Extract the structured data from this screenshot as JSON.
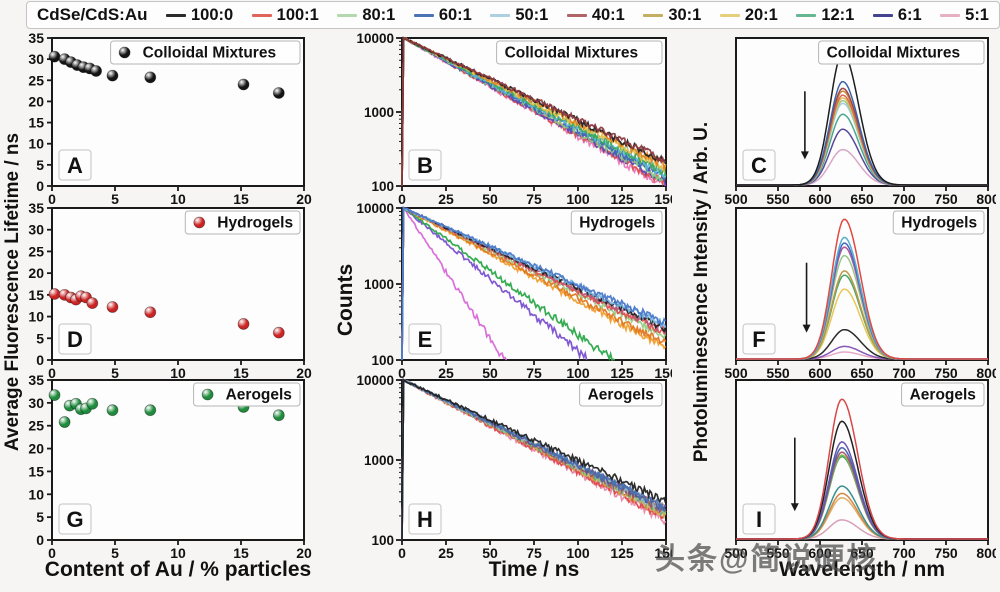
{
  "page": {
    "watermark": "头条@简说硬核"
  },
  "legend": {
    "title": "CdSe/CdS:Au",
    "items": [
      {
        "label": "100:0",
        "color": "#2a2a2a"
      },
      {
        "label": "100:1",
        "color": "#e0645a"
      },
      {
        "label": "80:1",
        "color": "#b2d9ae"
      },
      {
        "label": "60:1",
        "color": "#4a74b4"
      },
      {
        "label": "50:1",
        "color": "#aed0de"
      },
      {
        "label": "40:1",
        "color": "#b06468"
      },
      {
        "label": "30:1",
        "color": "#c4ae62"
      },
      {
        "label": "20:1",
        "color": "#e6cf7a"
      },
      {
        "label": "12:1",
        "color": "#66b694"
      },
      {
        "label": "6:1",
        "color": "#44448e"
      },
      {
        "label": "5:1",
        "color": "#e6b0c0"
      }
    ]
  },
  "axes": {
    "col1": {
      "ylabel": "Average Fluorescence Lifetime / ns",
      "xlabel": "Content of Au / % particles"
    },
    "col2": {
      "ylabel": "Counts",
      "xlabel": "Time / ns"
    },
    "col3": {
      "ylabel": "Photoluminescence Intensity / Arb. U.",
      "xlabel": "Wavelength / nm"
    }
  },
  "chart_data": [
    {
      "panel": "A",
      "type": "scatter",
      "label": "Colloidal Mixtures",
      "color": "#141414",
      "xlim": [
        0,
        20
      ],
      "ylim": [
        0,
        35
      ],
      "xticks": [
        0,
        5,
        10,
        15,
        20
      ],
      "yticks": [
        0,
        5,
        10,
        15,
        20,
        25,
        30,
        35
      ],
      "x": [
        0.2,
        1.0,
        1.5,
        2.0,
        2.5,
        3.0,
        3.5,
        4.8,
        7.8,
        15.2,
        18.0
      ],
      "y": [
        30.6,
        30.0,
        29.3,
        28.6,
        28.1,
        27.8,
        27.2,
        26.1,
        25.7,
        24.0,
        22.0
      ]
    },
    {
      "panel": "B",
      "type": "decay",
      "label": "Colloidal Mixtures",
      "xlim": [
        0,
        150
      ],
      "ylog": [
        100,
        10000
      ],
      "xticks": [
        0,
        25,
        50,
        75,
        100,
        125,
        150
      ],
      "yticks": [
        100,
        1000,
        10000
      ],
      "series": [
        {
          "name": "5:1",
          "color": "#e878b8",
          "end": 96
        },
        {
          "name": "100:1",
          "color": "#e05050",
          "end": 104
        },
        {
          "name": "6:1",
          "color": "#5a4ab4",
          "end": 110
        },
        {
          "name": "80:1",
          "color": "#8cc87c",
          "end": 118
        },
        {
          "name": "60:1",
          "color": "#3a68b8",
          "end": 127
        },
        {
          "name": "50:1",
          "color": "#62b8d8",
          "end": 138
        },
        {
          "name": "12:1",
          "color": "#3aa85a",
          "end": 150
        },
        {
          "name": "20:1",
          "color": "#e2c34a",
          "end": 168
        },
        {
          "name": "30:1",
          "color": "#e08428",
          "end": 185
        },
        {
          "name": "100:0",
          "color": "#222222",
          "end": 205
        },
        {
          "name": "40:1",
          "color": "#8e3a40",
          "end": 215
        }
      ]
    },
    {
      "panel": "C",
      "type": "spectra",
      "label": "Colloidal Mixtures",
      "xlim": [
        500,
        800
      ],
      "xticks": [
        500,
        550,
        600,
        650,
        700,
        750,
        800
      ],
      "peak_nm": 627,
      "arrow": {
        "direction": "down",
        "x_nm": 582
      },
      "series": [
        {
          "name": "5:1",
          "color": "#d8a8c8",
          "amp": 0.26
        },
        {
          "name": "6:1",
          "color": "#584a98",
          "amp": 0.41
        },
        {
          "name": "12:1",
          "color": "#4aa890",
          "amp": 0.52
        },
        {
          "name": "50:1",
          "color": "#a8cede",
          "amp": 0.6
        },
        {
          "name": "80:1",
          "color": "#9cc88c",
          "amp": 0.62
        },
        {
          "name": "20:1",
          "color": "#dcc258",
          "amp": 0.64
        },
        {
          "name": "100:1",
          "color": "#dc6858",
          "amp": 0.66
        },
        {
          "name": "30:1",
          "color": "#c88a38",
          "amp": 0.69
        },
        {
          "name": "40:1",
          "color": "#a04848",
          "amp": 0.71
        },
        {
          "name": "60:1",
          "color": "#3c64aa",
          "amp": 0.76
        },
        {
          "name": "100:0",
          "color": "#1e1e1e",
          "amp": 0.97
        }
      ]
    },
    {
      "panel": "D",
      "type": "scatter",
      "label": "Hydrogels",
      "color": "#cc2424",
      "xlim": [
        0,
        20
      ],
      "ylim": [
        0,
        35
      ],
      "xticks": [
        0,
        5,
        10,
        15,
        20
      ],
      "yticks": [
        0,
        5,
        10,
        15,
        20,
        25,
        30,
        35
      ],
      "x": [
        0.2,
        1.0,
        1.5,
        1.9,
        2.3,
        2.7,
        3.2,
        4.8,
        7.8,
        15.2,
        18.0
      ],
      "y": [
        15.2,
        15.0,
        14.4,
        13.9,
        14.7,
        14.4,
        13.1,
        12.2,
        11.0,
        8.3,
        6.3
      ]
    },
    {
      "panel": "E",
      "type": "decay",
      "label": "Hydrogels",
      "xlim": [
        0,
        150
      ],
      "ylog": [
        100,
        10000
      ],
      "xticks": [
        0,
        25,
        50,
        75,
        100,
        125,
        150
      ],
      "yticks": [
        100,
        1000,
        10000
      ],
      "series": [
        {
          "name": "5:1",
          "color": "#d868d8",
          "end": 0.055
        },
        {
          "name": "6:1",
          "color": "#7a50d0",
          "end": 14
        },
        {
          "name": "12:1",
          "color": "#2aa848",
          "end": 30
        },
        {
          "name": "20:1",
          "color": "#f0a030",
          "end": 140
        },
        {
          "name": "30:1",
          "color": "#e07820",
          "end": 160
        },
        {
          "name": "80:1",
          "color": "#98cc88",
          "end": 200
        },
        {
          "name": "100:1",
          "color": "#e05050",
          "end": 220
        },
        {
          "name": "40:1",
          "color": "#b85878",
          "end": 235
        },
        {
          "name": "100:0",
          "color": "#222222",
          "end": 255
        },
        {
          "name": "50:1",
          "color": "#7ab8e0",
          "end": 278
        },
        {
          "name": "60:1",
          "color": "#4a78c8",
          "end": 300
        }
      ]
    },
    {
      "panel": "F",
      "type": "spectra",
      "label": "Hydrogels",
      "xlim": [
        500,
        800
      ],
      "xticks": [
        500,
        550,
        600,
        650,
        700,
        750,
        800
      ],
      "peak_nm": 629,
      "arrow": {
        "direction": "down",
        "x_nm": 584
      },
      "series": [
        {
          "name": "5:1",
          "color": "#e8a8c8",
          "amp": 0.05
        },
        {
          "name": "6:1",
          "color": "#8858b8",
          "amp": 0.09
        },
        {
          "name": "100:0",
          "color": "#2a2a2a",
          "amp": 0.21
        },
        {
          "name": "20:1",
          "color": "#e8c858",
          "amp": 0.5
        },
        {
          "name": "12:1",
          "color": "#48a868",
          "amp": 0.6
        },
        {
          "name": "30:1",
          "color": "#c09a48",
          "amp": 0.63
        },
        {
          "name": "80:1",
          "color": "#98c888",
          "amp": 0.74
        },
        {
          "name": "40:1",
          "color": "#b05898",
          "amp": 0.8
        },
        {
          "name": "60:1",
          "color": "#4868c0",
          "amp": 0.83
        },
        {
          "name": "50:1",
          "color": "#58aed0",
          "amp": 0.87
        },
        {
          "name": "100:1",
          "color": "#e04840",
          "amp": 1.0
        }
      ]
    },
    {
      "panel": "G",
      "type": "scatter",
      "label": "Aerogels",
      "color": "#1e8c3c",
      "xlim": [
        0,
        20
      ],
      "ylim": [
        0,
        35
      ],
      "xticks": [
        0,
        5,
        10,
        15,
        20
      ],
      "yticks": [
        0,
        5,
        10,
        15,
        20,
        25,
        30,
        35
      ],
      "x": [
        0.2,
        1.0,
        1.4,
        1.9,
        2.3,
        2.7,
        3.2,
        4.8,
        7.8,
        15.2,
        18.0
      ],
      "y": [
        31.7,
        25.8,
        29.4,
        29.8,
        28.6,
        28.8,
        29.8,
        28.4,
        28.4,
        29.1,
        27.3
      ]
    },
    {
      "panel": "H",
      "type": "decay",
      "label": "Aerogels",
      "xlim": [
        0,
        150
      ],
      "ylog": [
        100,
        10000
      ],
      "xticks": [
        0,
        25,
        50,
        75,
        100,
        125,
        150
      ],
      "yticks": [
        100,
        1000,
        10000
      ],
      "series": [
        {
          "name": "5:1",
          "color": "#e888a8",
          "end": 172
        },
        {
          "name": "100:1",
          "color": "#e04848",
          "end": 182
        },
        {
          "name": "20:1",
          "color": "#d0b050",
          "end": 205
        },
        {
          "name": "30:1",
          "color": "#c09040",
          "end": 212
        },
        {
          "name": "12:1",
          "color": "#55a880",
          "end": 218
        },
        {
          "name": "80:1",
          "color": "#9cc48c",
          "end": 222
        },
        {
          "name": "40:1",
          "color": "#a05060",
          "end": 228
        },
        {
          "name": "50:1",
          "color": "#90b8cc",
          "end": 235
        },
        {
          "name": "6:1",
          "color": "#565690",
          "end": 240
        },
        {
          "name": "60:1",
          "color": "#4a74b4",
          "end": 248
        },
        {
          "name": "100:0",
          "color": "#222222",
          "end": 300
        }
      ]
    },
    {
      "panel": "I",
      "type": "spectra",
      "label": "Aerogels",
      "xlim": [
        500,
        800
      ],
      "xticks": [
        500,
        550,
        600,
        650,
        700,
        750,
        800
      ],
      "peak_nm": 626,
      "arrow": {
        "direction": "down",
        "x_nm": 570
      },
      "series": [
        {
          "name": "5:1",
          "color": "#d8a0b8",
          "amp": 0.13
        },
        {
          "name": "20:1",
          "color": "#e0b068",
          "amp": 0.28
        },
        {
          "name": "30:1",
          "color": "#d08848",
          "amp": 0.31
        },
        {
          "name": "50:1",
          "color": "#3a9090",
          "amp": 0.36
        },
        {
          "name": "12:1",
          "color": "#48a060",
          "amp": 0.56
        },
        {
          "name": "80:1",
          "color": "#88b858",
          "amp": 0.57
        },
        {
          "name": "40:1",
          "color": "#a85868",
          "amp": 0.59
        },
        {
          "name": "60:1",
          "color": "#4864b0",
          "amp": 0.62
        },
        {
          "name": "6:1",
          "color": "#6858b0",
          "amp": 0.66
        },
        {
          "name": "100:0",
          "color": "#222222",
          "amp": 0.8
        },
        {
          "name": "100:1",
          "color": "#d84848",
          "amp": 0.95
        }
      ]
    }
  ]
}
